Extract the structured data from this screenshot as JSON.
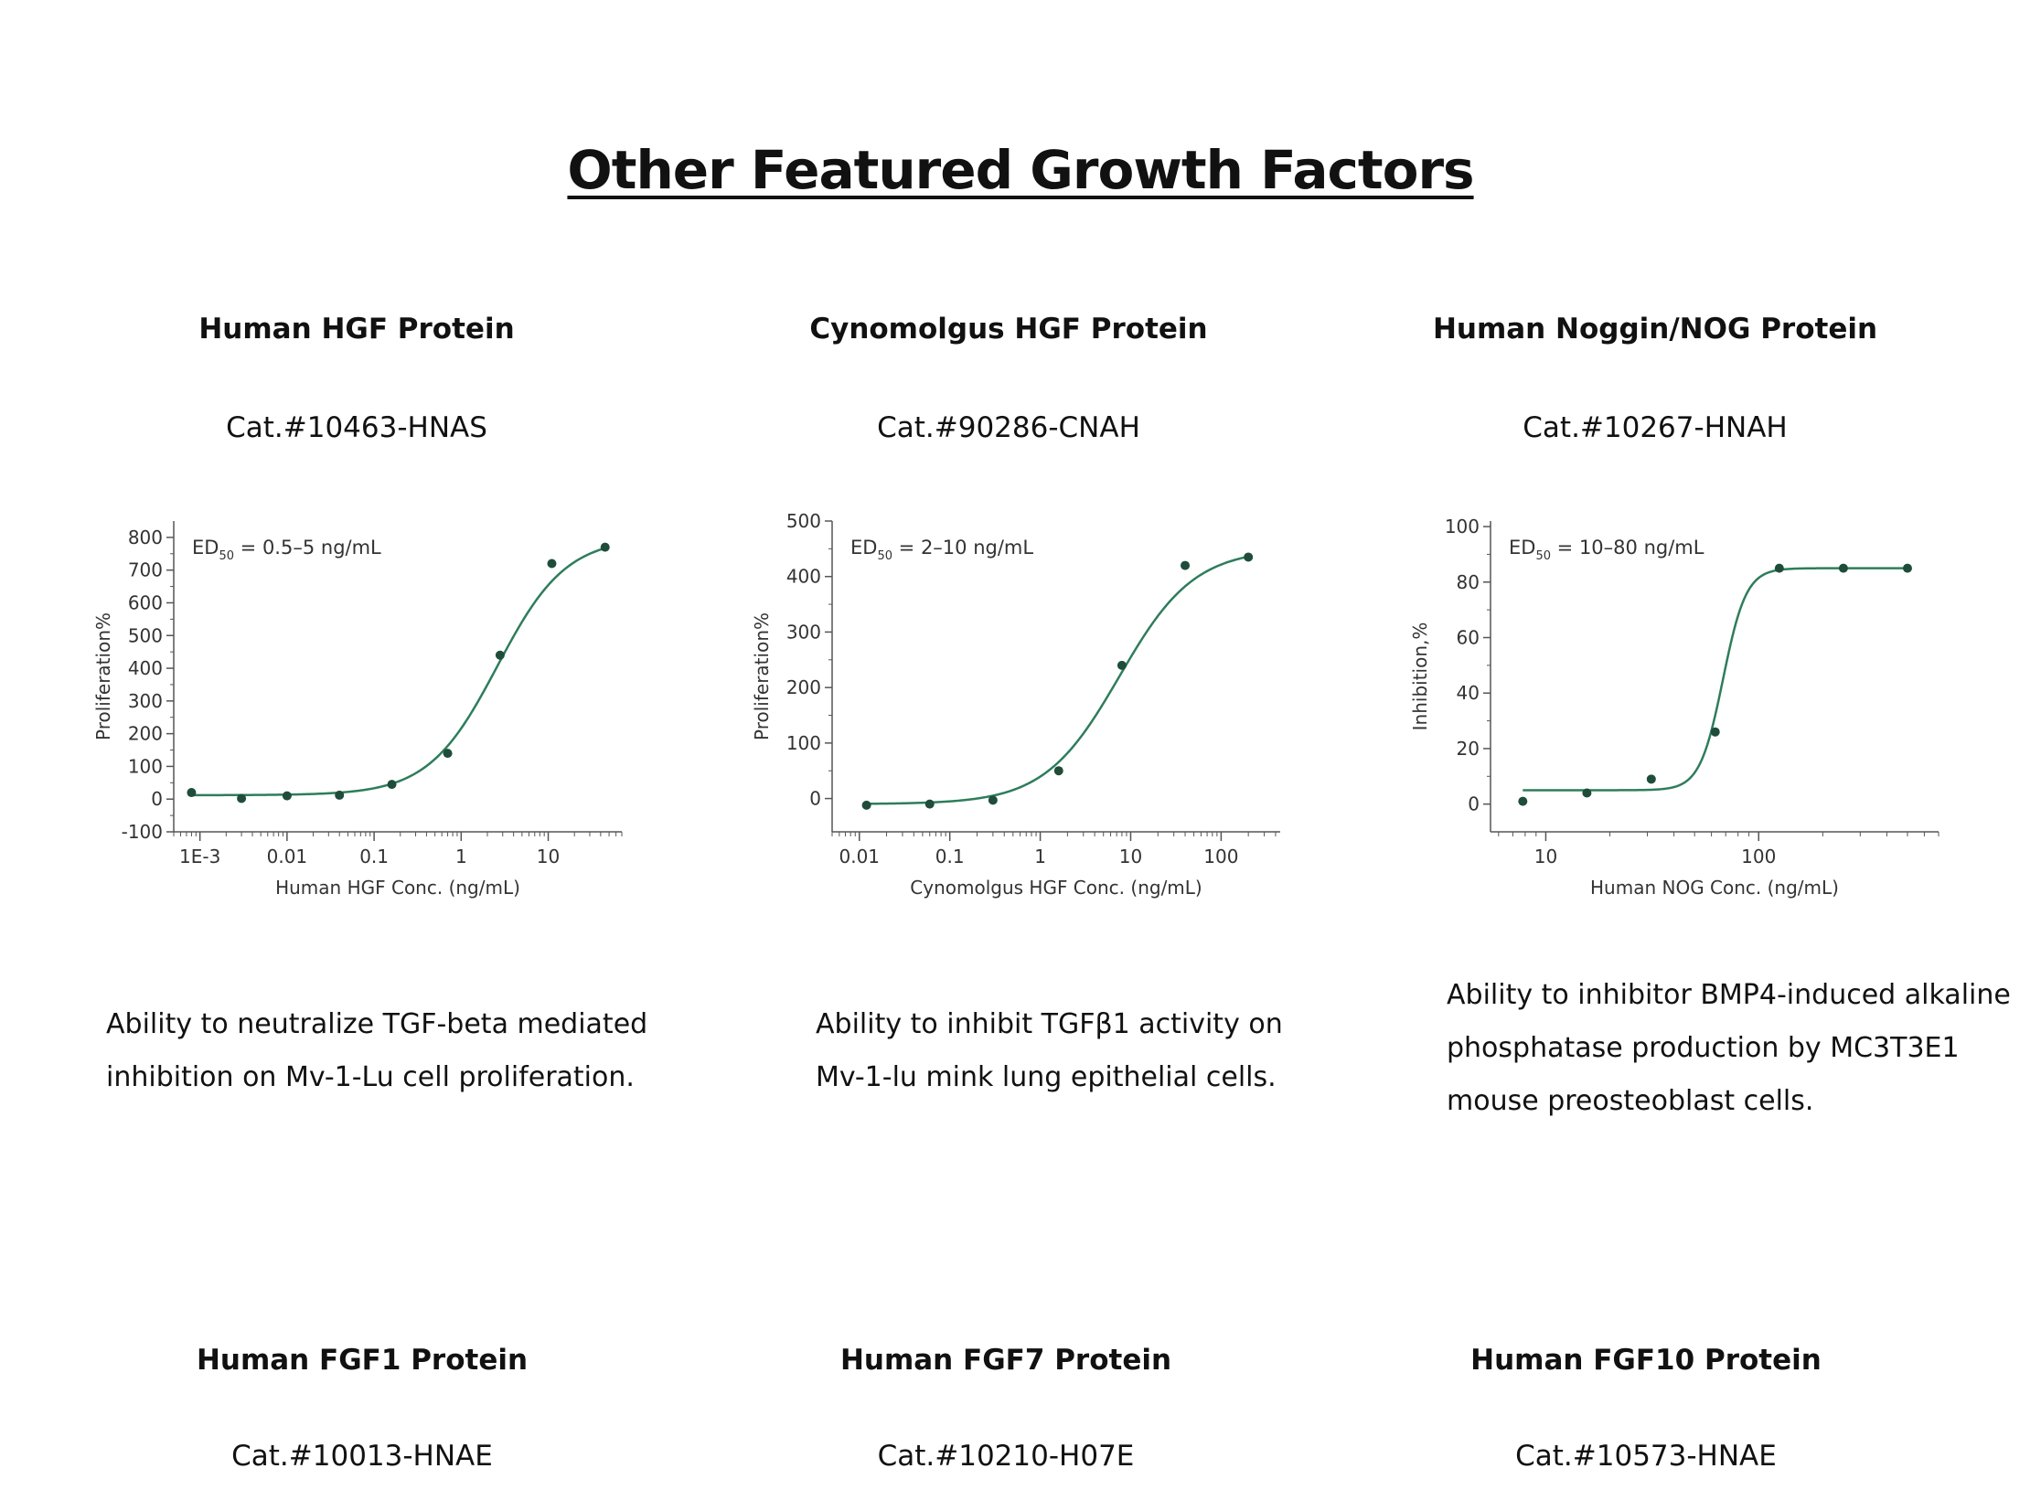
{
  "page_title": "Other Featured Growth Factors",
  "products": [
    {
      "name": "Human HGF Protein",
      "cat": "Cat.#10463-HNAS",
      "description": "Ability to neutralize TGF-beta mediated\ninhibition on Mv-1-Lu cell proliferation."
    },
    {
      "name": "Cynomolgus HGF Protein",
      "cat": "Cat.#90286-CNAH",
      "description": "Ability to inhibit TGFβ1 activity on\nMv-1-lu mink lung epithelial cells."
    },
    {
      "name": "Human Noggin/NOG Protein",
      "cat": "Cat.#10267-HNAH",
      "description": "Ability to inhibitor BMP4-induced alkaline\nphosphatase production by MC3T3E1\nmouse preosteoblast cells."
    },
    {
      "name": "Human FGF1 Protein",
      "cat": "Cat.#10013-HNAE"
    },
    {
      "name": "Human FGF7 Protein",
      "cat": "Cat.#10210-H07E"
    },
    {
      "name": "Human FGF10 Protein",
      "cat": "Cat.#10573-HNAE"
    }
  ],
  "colors": {
    "curve": "#2e7d5b",
    "point": "#1f4d3a",
    "axis": "#555555"
  },
  "chart_data": [
    {
      "type": "scatter",
      "fit": "sigmoid",
      "annotation": {
        "prefix": "ED",
        "sub": "50",
        "text": " = 0.5–5 ng/mL"
      },
      "xlabel": "Human HGF Conc. (ng/mL)",
      "ylabel": "Proliferation%",
      "xscale": "log",
      "xlim": [
        0.0005,
        70
      ],
      "ylim": [
        -100,
        850
      ],
      "xticks": [
        0.001,
        0.01,
        0.1,
        1,
        10
      ],
      "xtick_labels": [
        "1E-3",
        "0.01",
        "0.1",
        "1",
        "10"
      ],
      "yticks": [
        -100,
        0,
        100,
        200,
        300,
        400,
        500,
        600,
        700,
        800
      ],
      "ytick_labels": [
        "-100",
        "0",
        "100",
        "200",
        "300",
        "400",
        "500",
        "600",
        "700",
        "800"
      ],
      "points": [
        {
          "x": 0.0008,
          "y": 20
        },
        {
          "x": 0.003,
          "y": 2
        },
        {
          "x": 0.01,
          "y": 10
        },
        {
          "x": 0.04,
          "y": 12
        },
        {
          "x": 0.16,
          "y": 45
        },
        {
          "x": 0.7,
          "y": 140
        },
        {
          "x": 2.8,
          "y": 440
        },
        {
          "x": 11,
          "y": 720
        },
        {
          "x": 45,
          "y": 770
        }
      ],
      "fit_params": {
        "bottom": 12,
        "top": 800,
        "ec50": 2.6,
        "hill": 1.1
      }
    },
    {
      "type": "scatter",
      "fit": "sigmoid",
      "annotation": {
        "prefix": "ED",
        "sub": "50",
        "text": " = 2–10 ng/mL"
      },
      "xlabel": "Cynomolgus HGF Conc. (ng/mL)",
      "ylabel": "Proliferation%",
      "xscale": "log",
      "xlim": [
        0.005,
        450
      ],
      "ylim": [
        -60,
        500
      ],
      "xticks": [
        0.01,
        0.1,
        1,
        10,
        100
      ],
      "xtick_labels": [
        "0.01",
        "0.1",
        "1",
        "10",
        "100"
      ],
      "yticks": [
        0,
        100,
        200,
        300,
        400,
        500
      ],
      "ytick_labels": [
        "0",
        "100",
        "200",
        "300",
        "400",
        "500"
      ],
      "points": [
        {
          "x": 0.012,
          "y": -12
        },
        {
          "x": 0.06,
          "y": -10
        },
        {
          "x": 0.3,
          "y": -3
        },
        {
          "x": 1.6,
          "y": 50
        },
        {
          "x": 8,
          "y": 240
        },
        {
          "x": 40,
          "y": 420
        },
        {
          "x": 200,
          "y": 435
        }
      ],
      "fit_params": {
        "bottom": -10,
        "top": 450,
        "ec50": 7.5,
        "hill": 1.05
      }
    },
    {
      "type": "scatter",
      "fit": "sigmoid",
      "annotation": {
        "prefix": "ED",
        "sub": "50",
        "text": " = 10–80 ng/mL"
      },
      "xlabel": "Human NOG Conc. (ng/mL)",
      "ylabel": "Inhibition,%",
      "xscale": "log",
      "xlim": [
        5.5,
        700
      ],
      "ylim": [
        -10,
        102
      ],
      "xticks": [
        10,
        100
      ],
      "xtick_labels": [
        "10",
        "100"
      ],
      "yticks": [
        0,
        20,
        40,
        60,
        80,
        100
      ],
      "ytick_labels": [
        "0",
        "20",
        "40",
        "60",
        "80",
        "100"
      ],
      "points": [
        {
          "x": 7.8,
          "y": 1
        },
        {
          "x": 15.6,
          "y": 4
        },
        {
          "x": 31.3,
          "y": 9
        },
        {
          "x": 62.5,
          "y": 26
        },
        {
          "x": 125,
          "y": 85
        },
        {
          "x": 250,
          "y": 85
        },
        {
          "x": 500,
          "y": 85
        }
      ],
      "fit_params": {
        "bottom": 5,
        "top": 85,
        "ec50": 68,
        "hill": 8
      }
    }
  ]
}
